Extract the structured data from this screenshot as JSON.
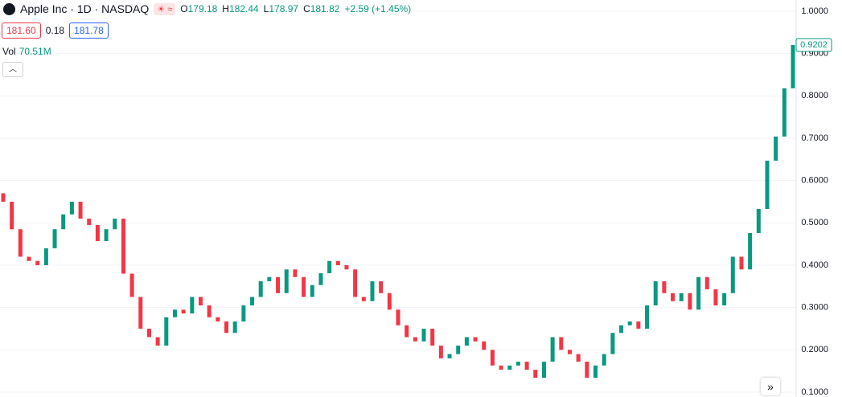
{
  "header": {
    "symbol": "Apple Inc · 1D · NASDAQ",
    "ohlc": [
      {
        "label": "O",
        "value": "179.18"
      },
      {
        "label": "H",
        "value": "182.44"
      },
      {
        "label": "L",
        "value": "178.97"
      },
      {
        "label": "C",
        "value": "181.82"
      }
    ],
    "change": "+2.59 (+1.45%)",
    "bid": "181.60",
    "spread": "0.18",
    "ask": "181.78",
    "volume_label": "Vol",
    "volume": "70.51M"
  },
  "chart_data": {
    "type": "candlestick",
    "up_color": "#089981",
    "down_color": "#f23645",
    "grid": true,
    "ylim": [
      0.0886,
      1.0266
    ],
    "yticks": [
      {
        "value": 1.0,
        "label": "1.0000"
      },
      {
        "value": 0.9,
        "label": "0.9000"
      },
      {
        "value": 0.8,
        "label": "0.8000"
      },
      {
        "value": 0.7,
        "label": "0.7000"
      },
      {
        "value": 0.6,
        "label": "0.6000"
      },
      {
        "value": 0.5,
        "label": "0.5000"
      },
      {
        "value": 0.4,
        "label": "0.4000"
      },
      {
        "value": 0.3,
        "label": "0.3000"
      },
      {
        "value": 0.2,
        "label": "0.2000"
      },
      {
        "value": 0.1,
        "label": "0.1000"
      }
    ],
    "open": [
      0.57,
      0.55,
      0.485,
      0.42,
      0.41,
      0.4,
      0.44,
      0.485,
      0.52,
      0.55,
      0.51,
      0.495,
      0.457,
      0.485,
      0.51,
      0.38,
      0.325,
      0.25,
      0.23,
      0.21,
      0.277,
      0.295,
      0.286,
      0.325,
      0.305,
      0.277,
      0.267,
      0.24,
      0.267,
      0.305,
      0.325,
      0.362,
      0.372,
      0.334,
      0.39,
      0.372,
      0.325,
      0.353,
      0.381,
      0.41,
      0.4,
      0.39,
      0.325,
      0.315,
      0.362,
      0.334,
      0.295,
      0.258,
      0.23,
      0.22,
      0.25,
      0.21,
      0.18,
      0.19,
      0.21,
      0.23,
      0.22,
      0.2,
      0.163,
      0.153,
      0.163,
      0.172,
      0.153,
      0.134,
      0.172,
      0.23,
      0.2,
      0.19,
      0.172,
      0.134,
      0.163,
      0.19,
      0.24,
      0.258,
      0.267,
      0.25,
      0.305,
      0.362,
      0.334,
      0.315,
      0.334,
      0.295,
      0.372,
      0.343,
      0.305,
      0.334,
      0.42,
      0.39,
      0.476,
      0.533,
      0.647,
      0.704,
      0.818
    ],
    "close": [
      0.55,
      0.485,
      0.42,
      0.41,
      0.4,
      0.44,
      0.485,
      0.52,
      0.55,
      0.51,
      0.495,
      0.457,
      0.485,
      0.51,
      0.38,
      0.325,
      0.25,
      0.23,
      0.21,
      0.277,
      0.295,
      0.286,
      0.325,
      0.305,
      0.277,
      0.267,
      0.24,
      0.267,
      0.305,
      0.325,
      0.362,
      0.372,
      0.334,
      0.39,
      0.372,
      0.325,
      0.353,
      0.381,
      0.41,
      0.4,
      0.39,
      0.325,
      0.315,
      0.362,
      0.334,
      0.295,
      0.258,
      0.23,
      0.22,
      0.25,
      0.21,
      0.18,
      0.19,
      0.21,
      0.23,
      0.22,
      0.2,
      0.163,
      0.153,
      0.163,
      0.172,
      0.153,
      0.134,
      0.172,
      0.23,
      0.2,
      0.19,
      0.172,
      0.134,
      0.163,
      0.19,
      0.24,
      0.258,
      0.267,
      0.25,
      0.305,
      0.362,
      0.334,
      0.315,
      0.334,
      0.295,
      0.372,
      0.343,
      0.305,
      0.334,
      0.42,
      0.39,
      0.476,
      0.533,
      0.647,
      0.704,
      0.818,
      0.9202
    ]
  }
}
